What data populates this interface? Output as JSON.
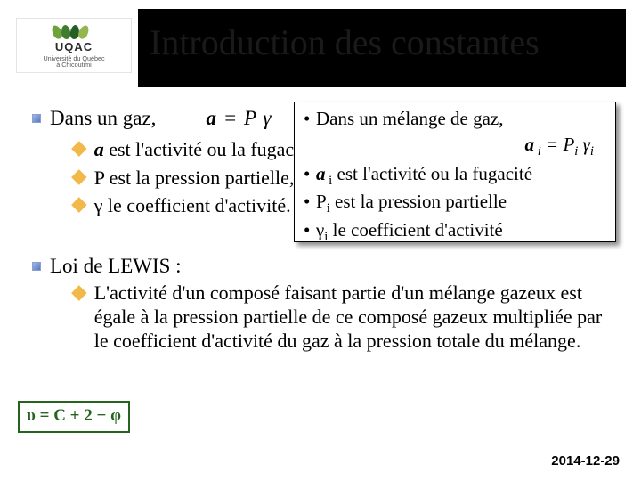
{
  "logo": {
    "acronym": "UQAC",
    "subtitle_line1": "Université du Québec",
    "subtitle_line2": "à Chicoutimi"
  },
  "title": "Introduction des constantes",
  "left": {
    "lead": "Dans un gaz,",
    "formula_a": "a",
    "formula_rest": " =  P γ",
    "sub1_a": "a",
    "sub1_rest": " est l'activité ou la fugacité,",
    "sub2": "P est la pression partielle,",
    "sub3": "γ le coefficient d'activité."
  },
  "lewis": {
    "heading": "Loi de LEWIS :",
    "body": "L'activité d'un composé faisant partie d'un mélange gazeux est égale à la pression partielle de ce composé gazeux multipliée par le coefficient d'activité du gaz à la pression totale du mélange."
  },
  "callout": {
    "line1": "Dans un mélange de gaz,",
    "formula_a": "a",
    "formula_sub_i": " i",
    "formula_rest": "  =  P",
    "formula_pi_sub": "i",
    "formula_gamma": "  γ",
    "formula_gamma_sub": "i",
    "line2_a": "a",
    "line2_sub": " i",
    "line2_rest": "  est l'activité ou la fugacité",
    "line3_p": "P",
    "line3_sub": "i",
    "line3_rest": "  est la pression partielle",
    "line4_g": "γ",
    "line4_sub": "i",
    "line4_rest": "  le coefficient d'activité"
  },
  "phase_rule": "υ = C + 2 − φ",
  "date": "2014-12-29",
  "colors": {
    "title_band": "#000000",
    "accent_green": "#25631f",
    "sub_bullet": "#f2b84a"
  }
}
